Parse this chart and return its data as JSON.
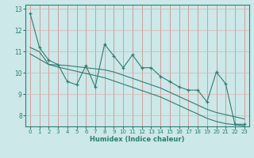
{
  "xlabel": "Humidex (Indice chaleur)",
  "x": [
    0,
    1,
    2,
    3,
    4,
    5,
    6,
    7,
    8,
    9,
    10,
    11,
    12,
    13,
    14,
    15,
    16,
    17,
    18,
    19,
    20,
    21,
    22,
    23
  ],
  "y_main": [
    12.8,
    11.2,
    10.6,
    10.4,
    9.6,
    9.45,
    10.35,
    9.35,
    11.35,
    10.8,
    10.25,
    10.85,
    10.25,
    10.25,
    9.85,
    9.6,
    9.35,
    9.2,
    9.2,
    8.65,
    10.05,
    9.5,
    7.6,
    7.6
  ],
  "y_trend1": [
    11.2,
    11.0,
    10.4,
    10.38,
    10.35,
    10.3,
    10.25,
    10.2,
    10.15,
    10.05,
    9.9,
    9.75,
    9.6,
    9.45,
    9.3,
    9.1,
    8.9,
    8.7,
    8.5,
    8.3,
    8.15,
    8.05,
    7.95,
    7.85
  ],
  "y_trend2": [
    10.9,
    10.65,
    10.4,
    10.28,
    10.18,
    10.08,
    9.98,
    9.88,
    9.78,
    9.63,
    9.48,
    9.33,
    9.18,
    9.03,
    8.88,
    8.68,
    8.48,
    8.28,
    8.08,
    7.88,
    7.73,
    7.63,
    7.58,
    7.53
  ],
  "ylim": [
    7.5,
    13.2
  ],
  "xlim": [
    -0.5,
    23.5
  ],
  "yticks": [
    8,
    9,
    10,
    11,
    12,
    13
  ],
  "xticks": [
    0,
    1,
    2,
    3,
    4,
    5,
    6,
    7,
    8,
    9,
    10,
    11,
    12,
    13,
    14,
    15,
    16,
    17,
    18,
    19,
    20,
    21,
    22,
    23
  ],
  "line_color": "#2e7d72",
  "bg_color": "#cce8e8",
  "grid_color_v": "#d08080",
  "grid_color_h": "#e0b0b0",
  "plot_bg": "#cce8e8"
}
